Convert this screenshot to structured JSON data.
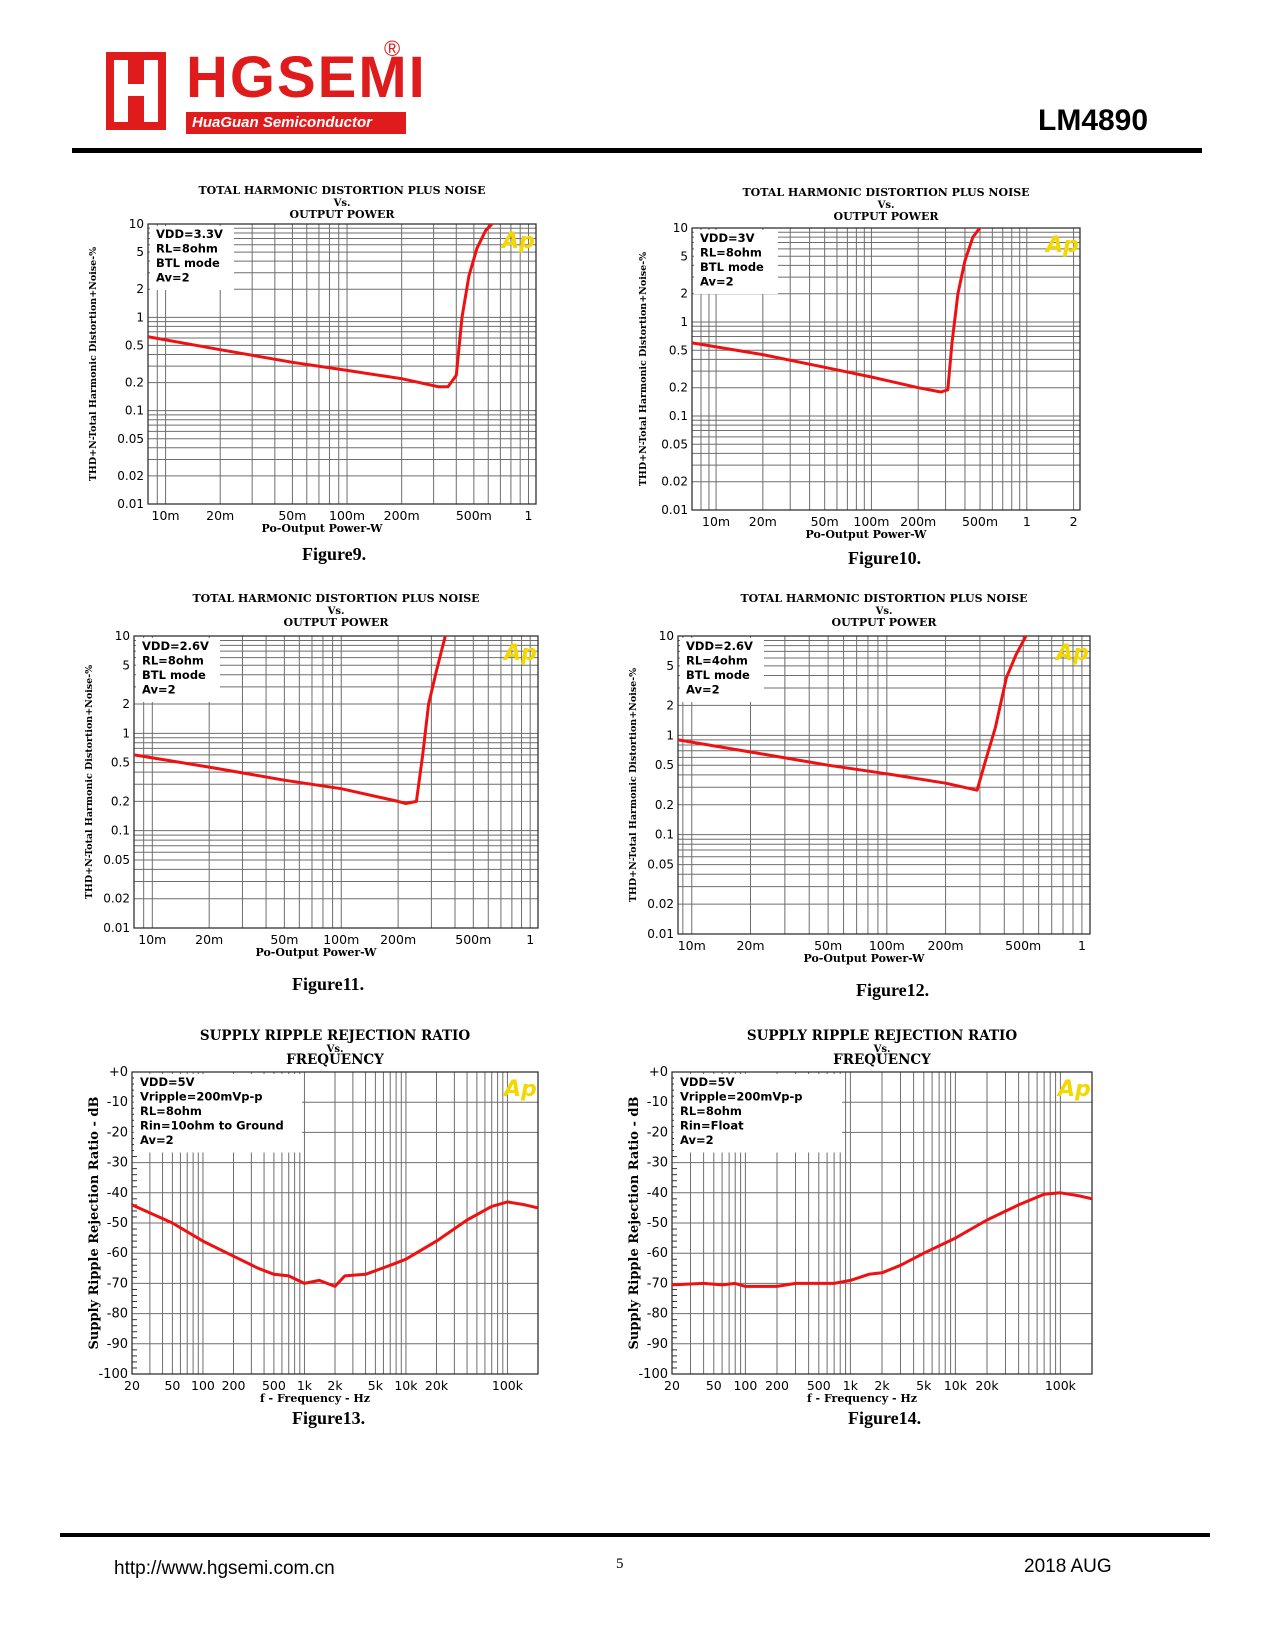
{
  "header": {
    "brand": "HGSEMI",
    "registered": "®",
    "sub_brand": "HuaGuan Semiconductor",
    "part_number": "LM4890"
  },
  "footer": {
    "url": "http://www.hgsemi.com.cn",
    "page": "5",
    "date": "2018 AUG"
  },
  "colors": {
    "brand_red": "#e01b1b",
    "curve_red": "#ee1111",
    "grid": "#6e6e6e",
    "ap_yellow": "#f4d600"
  },
  "chart_data": [
    {
      "type": "line",
      "figure": "Figure9.",
      "title": [
        "TOTAL HARMONIC DISTORTION PLUS NOISE",
        "Vs.",
        "OUTPUT POWER"
      ],
      "xlabel": "Po-Output Power-W",
      "ylabel": "THD+N-Total Harmonic Distortion+Noise-%",
      "xscale": "log",
      "yscale": "log",
      "xlim": [
        0.008,
        1.1
      ],
      "ylim": [
        0.01,
        10
      ],
      "xticks": [
        {
          "v": 0.01,
          "t": "10m"
        },
        {
          "v": 0.02,
          "t": "20m"
        },
        {
          "v": 0.05,
          "t": "50m"
        },
        {
          "v": 0.1,
          "t": "100m"
        },
        {
          "v": 0.2,
          "t": "200m"
        },
        {
          "v": 0.5,
          "t": "500m"
        },
        {
          "v": 1,
          "t": "1"
        }
      ],
      "yticks": [
        {
          "v": 10,
          "t": "10"
        },
        {
          "v": 5,
          "t": "5"
        },
        {
          "v": 2,
          "t": "2"
        },
        {
          "v": 1,
          "t": "1"
        },
        {
          "v": 0.5,
          "t": "0.5"
        },
        {
          "v": 0.2,
          "t": "0.2"
        },
        {
          "v": 0.1,
          "t": "0.1"
        },
        {
          "v": 0.05,
          "t": "0.05"
        },
        {
          "v": 0.02,
          "t": "0.02"
        },
        {
          "v": 0.01,
          "t": "0.01"
        }
      ],
      "legend": [
        "VDD=3.3V",
        "RL=8ohm",
        "BTL mode",
        "Av=2"
      ],
      "badge": "Ap",
      "series": [
        {
          "name": "THD+N",
          "x": [
            0.008,
            0.02,
            0.05,
            0.1,
            0.2,
            0.32,
            0.36,
            0.4,
            0.43,
            0.47,
            0.52,
            0.58,
            0.66
          ],
          "y": [
            0.62,
            0.45,
            0.33,
            0.27,
            0.22,
            0.18,
            0.18,
            0.24,
            1.0,
            2.8,
            5.5,
            8.5,
            11
          ]
        }
      ]
    },
    {
      "type": "line",
      "figure": "Figure10.",
      "title": [
        "TOTAL HARMONIC DISTORTION PLUS NOISE",
        "Vs.",
        "OUTPUT POWER"
      ],
      "xlabel": "Po-Output Power-W",
      "ylabel": "THD+N-Total Harmonic Distortion+Noise-%",
      "xscale": "log",
      "yscale": "log",
      "xlim": [
        0.007,
        2.2
      ],
      "ylim": [
        0.01,
        10
      ],
      "xticks": [
        {
          "v": 0.01,
          "t": "10m"
        },
        {
          "v": 0.02,
          "t": "20m"
        },
        {
          "v": 0.05,
          "t": "50m"
        },
        {
          "v": 0.1,
          "t": "100m"
        },
        {
          "v": 0.2,
          "t": "200m"
        },
        {
          "v": 0.5,
          "t": "500m"
        },
        {
          "v": 1,
          "t": "1"
        },
        {
          "v": 2,
          "t": "2"
        }
      ],
      "yticks": [
        {
          "v": 10,
          "t": "10"
        },
        {
          "v": 5,
          "t": "5"
        },
        {
          "v": 2,
          "t": "2"
        },
        {
          "v": 1,
          "t": "1"
        },
        {
          "v": 0.5,
          "t": "0.5"
        },
        {
          "v": 0.2,
          "t": "0.2"
        },
        {
          "v": 0.1,
          "t": "0.1"
        },
        {
          "v": 0.05,
          "t": "0.05"
        },
        {
          "v": 0.02,
          "t": "0.02"
        },
        {
          "v": 0.01,
          "t": "0.01"
        }
      ],
      "legend": [
        "VDD=3V",
        "RL=8ohm",
        "BTL mode",
        "Av=2"
      ],
      "badge": "Ap",
      "series": [
        {
          "name": "THD+N",
          "x": [
            0.007,
            0.02,
            0.05,
            0.1,
            0.2,
            0.28,
            0.31,
            0.33,
            0.36,
            0.4,
            0.45,
            0.52
          ],
          "y": [
            0.6,
            0.45,
            0.33,
            0.26,
            0.2,
            0.18,
            0.19,
            0.6,
            2.0,
            4.5,
            8,
            11
          ]
        }
      ]
    },
    {
      "type": "line",
      "figure": "Figure11.",
      "title": [
        "TOTAL HARMONIC DISTORTION PLUS NOISE",
        "Vs.",
        "OUTPUT POWER"
      ],
      "xlabel": "Po-Output Power-W",
      "ylabel": "THD+N-Total Harmonic Distortion+Noise-%",
      "xscale": "log",
      "yscale": "log",
      "xlim": [
        0.008,
        1.1
      ],
      "ylim": [
        0.01,
        10
      ],
      "xticks": [
        {
          "v": 0.01,
          "t": "10m"
        },
        {
          "v": 0.02,
          "t": "20m"
        },
        {
          "v": 0.05,
          "t": "50m"
        },
        {
          "v": 0.1,
          "t": "100m"
        },
        {
          "v": 0.2,
          "t": "200m"
        },
        {
          "v": 0.5,
          "t": "500m"
        },
        {
          "v": 1,
          "t": "1"
        }
      ],
      "yticks": [
        {
          "v": 10,
          "t": "10"
        },
        {
          "v": 5,
          "t": "5"
        },
        {
          "v": 2,
          "t": "2"
        },
        {
          "v": 1,
          "t": "1"
        },
        {
          "v": 0.5,
          "t": "0.5"
        },
        {
          "v": 0.2,
          "t": "0.2"
        },
        {
          "v": 0.1,
          "t": "0.1"
        },
        {
          "v": 0.05,
          "t": "0.05"
        },
        {
          "v": 0.02,
          "t": "0.02"
        },
        {
          "v": 0.01,
          "t": "0.01"
        }
      ],
      "legend": [
        "VDD=2.6V",
        "RL=8ohm",
        "BTL mode",
        "Av=2"
      ],
      "badge": "Ap",
      "series": [
        {
          "name": "THD+N",
          "x": [
            0.008,
            0.02,
            0.05,
            0.1,
            0.2,
            0.22,
            0.25,
            0.27,
            0.29,
            0.32,
            0.36
          ],
          "y": [
            0.6,
            0.45,
            0.33,
            0.27,
            0.2,
            0.19,
            0.2,
            0.6,
            2.0,
            4.5,
            11
          ]
        }
      ]
    },
    {
      "type": "line",
      "figure": "Figure12.",
      "title": [
        "TOTAL HARMONIC DISTORTION PLUS NOISE",
        "Vs.",
        "OUTPUT POWER"
      ],
      "xlabel": "Po-Output Power-W",
      "ylabel": "THD+N-Total Harmonic Distortion+Noise-%",
      "xscale": "log",
      "yscale": "log",
      "xlim": [
        0.0085,
        1.1
      ],
      "ylim": [
        0.01,
        10
      ],
      "xticks": [
        {
          "v": 0.01,
          "t": "10m"
        },
        {
          "v": 0.02,
          "t": "20m"
        },
        {
          "v": 0.05,
          "t": "50m"
        },
        {
          "v": 0.1,
          "t": "100m"
        },
        {
          "v": 0.2,
          "t": "200m"
        },
        {
          "v": 0.5,
          "t": "500m"
        },
        {
          "v": 1,
          "t": "1"
        }
      ],
      "yticks": [
        {
          "v": 10,
          "t": "10"
        },
        {
          "v": 5,
          "t": "5"
        },
        {
          "v": 2,
          "t": "2"
        },
        {
          "v": 1,
          "t": "1"
        },
        {
          "v": 0.5,
          "t": "0.5"
        },
        {
          "v": 0.2,
          "t": "0.2"
        },
        {
          "v": 0.1,
          "t": "0.1"
        },
        {
          "v": 0.05,
          "t": "0.05"
        },
        {
          "v": 0.02,
          "t": "0.02"
        },
        {
          "v": 0.01,
          "t": "0.01"
        }
      ],
      "legend": [
        "VDD=2.6V",
        "RL=4ohm",
        "BTL mode",
        "Av=2"
      ],
      "badge": "Ap",
      "series": [
        {
          "name": "THD+N",
          "x": [
            0.0085,
            0.02,
            0.05,
            0.1,
            0.2,
            0.29,
            0.32,
            0.36,
            0.41,
            0.46,
            0.53
          ],
          "y": [
            0.9,
            0.68,
            0.5,
            0.41,
            0.33,
            0.28,
            0.55,
            1.2,
            3.8,
            6.5,
            11
          ]
        }
      ]
    },
    {
      "type": "line",
      "figure": "Figure13.",
      "title": [
        "SUPPLY RIPPLE REJECTION RATIO",
        "Vs.",
        "FREQUENCY"
      ],
      "xlabel": "f - Frequency - Hz",
      "ylabel": "Supply Ripple Rejection Ratio - dB",
      "xscale": "log",
      "yscale": "linear",
      "xlim": [
        20,
        200000
      ],
      "ylim": [
        -100,
        0
      ],
      "xticks": [
        {
          "v": 20,
          "t": "20"
        },
        {
          "v": 50,
          "t": "50"
        },
        {
          "v": 100,
          "t": "100"
        },
        {
          "v": 200,
          "t": "200"
        },
        {
          "v": 500,
          "t": "500"
        },
        {
          "v": 1000,
          "t": "1k"
        },
        {
          "v": 2000,
          "t": "2k"
        },
        {
          "v": 5000,
          "t": "5k"
        },
        {
          "v": 10000,
          "t": "10k"
        },
        {
          "v": 20000,
          "t": "20k"
        },
        {
          "v": 100000,
          "t": "100k"
        }
      ],
      "yticks": [
        {
          "v": 0,
          "t": "+0"
        },
        {
          "v": -10,
          "t": "-10"
        },
        {
          "v": -20,
          "t": "-20"
        },
        {
          "v": -30,
          "t": "-30"
        },
        {
          "v": -40,
          "t": "-40"
        },
        {
          "v": -50,
          "t": "-50"
        },
        {
          "v": -60,
          "t": "-60"
        },
        {
          "v": -70,
          "t": "-70"
        },
        {
          "v": -80,
          "t": "-80"
        },
        {
          "v": -90,
          "t": "-90"
        },
        {
          "v": -100,
          "t": "-100"
        }
      ],
      "legend": [
        "VDD=5V",
        "Vripple=200mVp-p",
        "RL=8ohm",
        "Rin=10ohm to Ground",
        "Av=2"
      ],
      "badge": "Ap",
      "series": [
        {
          "name": "PSRR",
          "x": [
            20,
            50,
            100,
            200,
            350,
            500,
            700,
            1000,
            1400,
            2000,
            2500,
            4000,
            7000,
            10000,
            20000,
            40000,
            70000,
            100000,
            150000,
            200000
          ],
          "y": [
            -44,
            -50,
            -56,
            -61,
            -65,
            -67,
            -67.5,
            -70,
            -69,
            -71,
            -67.5,
            -67,
            -64,
            -62,
            -56,
            -49,
            -44.5,
            -43,
            -44,
            -45
          ]
        }
      ]
    },
    {
      "type": "line",
      "figure": "Figure14.",
      "title": [
        "SUPPLY RIPPLE REJECTION RATIO",
        "Vs.",
        "FREQUENCY"
      ],
      "xlabel": "f - Frequency - Hz",
      "ylabel": "Supply Ripple Rejection Ratio - dB",
      "xscale": "log",
      "yscale": "linear",
      "xlim": [
        20,
        200000
      ],
      "ylim": [
        -100,
        0
      ],
      "xticks": [
        {
          "v": 20,
          "t": "20"
        },
        {
          "v": 50,
          "t": "50"
        },
        {
          "v": 100,
          "t": "100"
        },
        {
          "v": 200,
          "t": "200"
        },
        {
          "v": 500,
          "t": "500"
        },
        {
          "v": 1000,
          "t": "1k"
        },
        {
          "v": 2000,
          "t": "2k"
        },
        {
          "v": 5000,
          "t": "5k"
        },
        {
          "v": 10000,
          "t": "10k"
        },
        {
          "v": 20000,
          "t": "20k"
        },
        {
          "v": 100000,
          "t": "100k"
        }
      ],
      "yticks": [
        {
          "v": 0,
          "t": "+0"
        },
        {
          "v": -10,
          "t": "-10"
        },
        {
          "v": -20,
          "t": "-20"
        },
        {
          "v": -30,
          "t": "-30"
        },
        {
          "v": -40,
          "t": "-40"
        },
        {
          "v": -50,
          "t": "-50"
        },
        {
          "v": -60,
          "t": "-60"
        },
        {
          "v": -70,
          "t": "-70"
        },
        {
          "v": -80,
          "t": "-80"
        },
        {
          "v": -90,
          "t": "-90"
        },
        {
          "v": -100,
          "t": "-100"
        }
      ],
      "legend": [
        "VDD=5V",
        "Vripple=200mVp-p",
        "RL=8ohm",
        "Rin=Float",
        "Av=2"
      ],
      "badge": "Ap",
      "series": [
        {
          "name": "PSRR",
          "x": [
            20,
            40,
            60,
            80,
            100,
            200,
            300,
            500,
            700,
            1000,
            1500,
            2000,
            3000,
            5000,
            10000,
            20000,
            40000,
            70000,
            100000,
            150000,
            200000
          ],
          "y": [
            -70.5,
            -70,
            -70.5,
            -70,
            -71,
            -71,
            -70,
            -70,
            -70,
            -69,
            -67,
            -66.5,
            -64,
            -60,
            -55,
            -49,
            -44,
            -40.5,
            -40,
            -41,
            -42
          ]
        }
      ]
    }
  ]
}
